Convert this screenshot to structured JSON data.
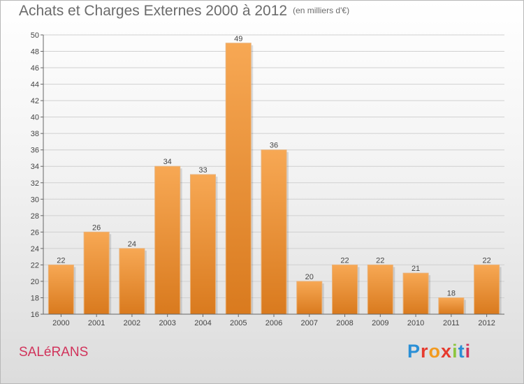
{
  "header": {
    "title": "Achats et Charges Externes 2000 à 2012",
    "unit": "(en milliers d'€)"
  },
  "footer": {
    "commune": "SALéRANS",
    "logo": "Proxiti",
    "logo_letters": [
      "P",
      "r",
      "o",
      "x",
      "i",
      "t",
      "i"
    ],
    "logo_colors": [
      "#2a8fd6",
      "#e63a2e",
      "#f29a1f",
      "#e63a2e",
      "#8cc63f",
      "#2a8fd6",
      "#d1335b"
    ]
  },
  "colors": {
    "bar_light": "#f7a854",
    "bar_dark": "#d97a1e",
    "title": "#6b6b6b",
    "commune": "#d1335b",
    "grid": "#d0d0d0"
  },
  "chart_data": {
    "type": "bar",
    "title": "Achats et Charges Externes 2000 à 2012",
    "subtitle": "(en milliers d'€)",
    "categories": [
      "2000",
      "2001",
      "2002",
      "2003",
      "2004",
      "2005",
      "2006",
      "2007",
      "2008",
      "2009",
      "2010",
      "2011",
      "2012"
    ],
    "values": [
      22,
      26,
      24,
      34,
      33,
      49,
      36,
      20,
      22,
      22,
      21,
      18,
      22
    ],
    "ylim": [
      16,
      50
    ],
    "yticks": [
      16,
      18,
      20,
      22,
      24,
      26,
      28,
      30,
      32,
      34,
      36,
      38,
      40,
      42,
      44,
      46,
      48,
      50
    ],
    "grid": true,
    "xlabel": "",
    "ylabel": ""
  }
}
